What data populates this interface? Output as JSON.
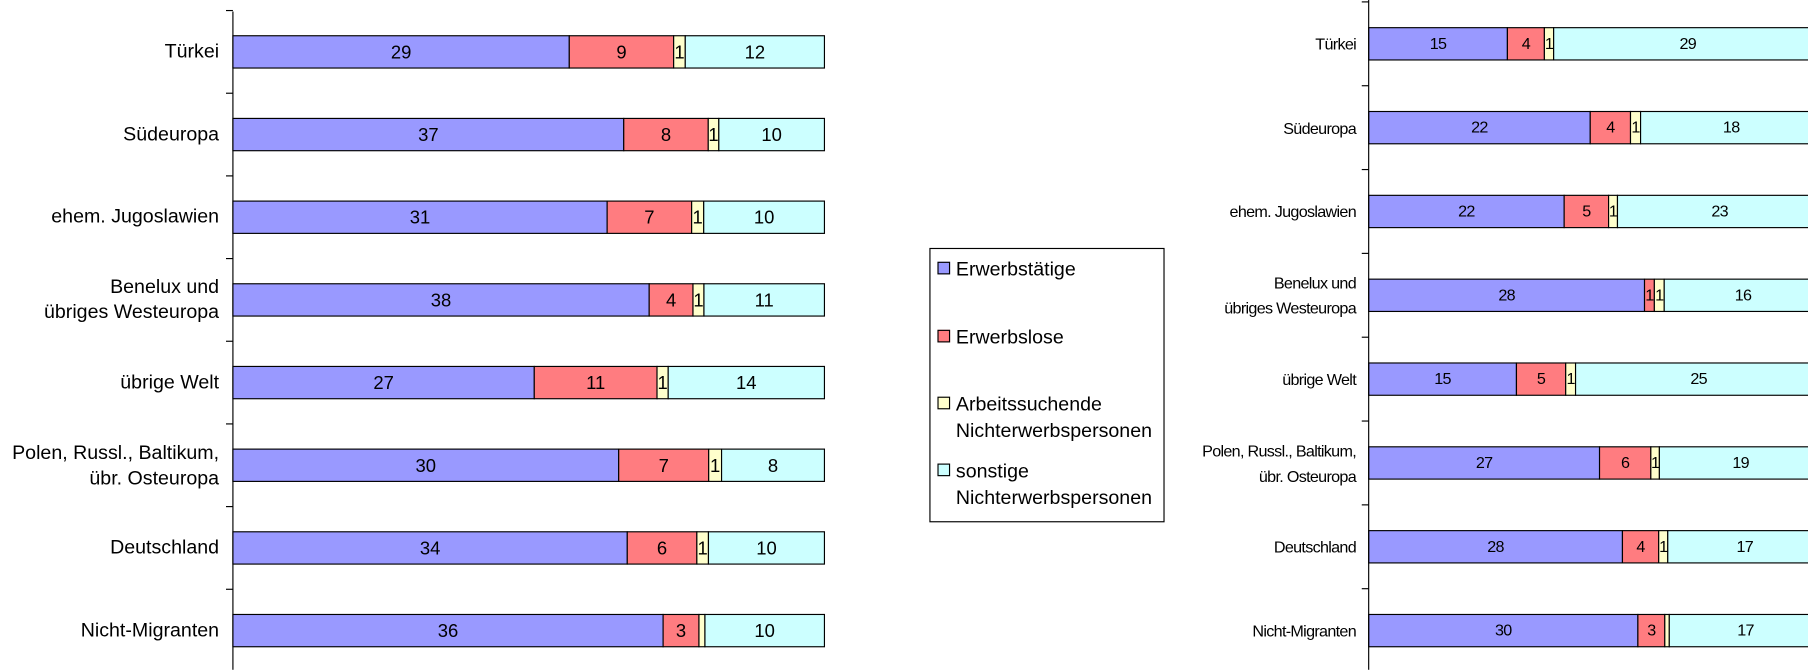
{
  "chart_data": [
    {
      "type": "bar",
      "stacked": true,
      "percent": true,
      "categories": [
        "Türkei",
        "Südeuropa",
        "ehem. Jugoslawien",
        "Benelux und\nübriges Westeuropa",
        "übrige Welt",
        "Polen, Russl., Baltikum,\nübr. Osteuropa",
        "Deutschland",
        "Nicht-Migranten"
      ],
      "series": [
        {
          "name": "Erwerbstätige",
          "color": "#9999ff",
          "values": [
            29,
            37,
            31,
            38,
            27,
            30,
            34,
            36
          ]
        },
        {
          "name": "Erwerbslose",
          "color": "#ff7c80",
          "values": [
            9,
            8,
            7,
            4,
            11,
            7,
            6,
            3
          ]
        },
        {
          "name": "Arbeitssuchende Nichterwerbspersonen",
          "color": "#ffffcc",
          "values": [
            1,
            1,
            1,
            1,
            1,
            1,
            1,
            0.5
          ]
        },
        {
          "name": "sonstige Nichterwerbspersonen",
          "color": "#ccffff",
          "values": [
            12,
            10,
            10,
            11,
            14,
            8,
            10,
            10
          ]
        }
      ]
    },
    {
      "type": "bar",
      "stacked": true,
      "percent": true,
      "categories": [
        "Türkei",
        "Südeuropa",
        "ehem. Jugoslawien",
        "Benelux und\nübriges Westeuropa",
        "übrige Welt",
        "Polen, Russl., Baltikum,\nübr. Osteuropa",
        "Deutschland",
        "Nicht-Migranten"
      ],
      "series": [
        {
          "name": "Erwerbstätige",
          "color": "#9999ff",
          "values": [
            15,
            22,
            22,
            28,
            15,
            27,
            28,
            30
          ]
        },
        {
          "name": "Erwerbslose",
          "color": "#ff7c80",
          "values": [
            4,
            4,
            5,
            1,
            5,
            6,
            4,
            3
          ]
        },
        {
          "name": "Arbeitssuchende Nichterwerbspersonen",
          "color": "#ffffcc",
          "values": [
            1,
            1,
            1,
            1,
            1,
            1,
            1,
            0.5
          ]
        },
        {
          "name": "sonstige Nichterwerbspersonen",
          "color": "#ccffff",
          "values": [
            29,
            18,
            23,
            16,
            25,
            19,
            17,
            17
          ]
        }
      ]
    }
  ]
}
